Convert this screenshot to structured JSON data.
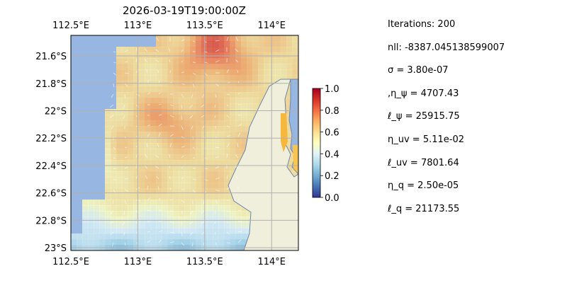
{
  "chart_data": {
    "type": "heatmap",
    "title": "2026-03-19T19:00:00Z",
    "x_ticks": [
      "112.5°E",
      "113°E",
      "113.5°E",
      "114°E"
    ],
    "x_tick_values": [
      112.5,
      113.0,
      113.5,
      114.0
    ],
    "y_ticks": [
      "21.6°S",
      "21.8°S",
      "22°S",
      "22.2°S",
      "22.4°S",
      "22.6°S",
      "22.8°S",
      "23°S"
    ],
    "y_tick_values": [
      -21.6,
      -21.8,
      -22.0,
      -22.2,
      -22.4,
      -22.6,
      -22.8,
      -23.0
    ],
    "xlim": [
      112.5,
      114.2
    ],
    "ylim": [
      -23.02,
      -21.45
    ],
    "grid": true,
    "colorbar": {
      "ticks": [
        "1.0",
        "0.8",
        "0.6",
        "0.4",
        "0.2",
        "0.0"
      ],
      "tick_values": [
        1.0,
        0.8,
        0.6,
        0.4,
        0.2,
        0.0
      ],
      "range": [
        0.0,
        1.0
      ],
      "colormap": "RdYlBu_r"
    },
    "colors": {
      "ocean": "#97b6e1",
      "land": "#efefdb",
      "coast": "#6f86a8"
    }
  },
  "params": {
    "iterations": "Iterations: 200",
    "nll": "nll: -8387.045138599007",
    "sigma": "σ = 3.80e-07",
    "eta_psi": ",η_ψ = 4707.43",
    "ell_psi": "ℓ_ψ = 25915.75",
    "eta_uv": "η_uv = 5.11e-02",
    "ell_uv": "ℓ_uv = 7801.64",
    "eta_q": "η_q = 2.50e-05",
    "ell_q": "ℓ_q = 21173.55"
  }
}
